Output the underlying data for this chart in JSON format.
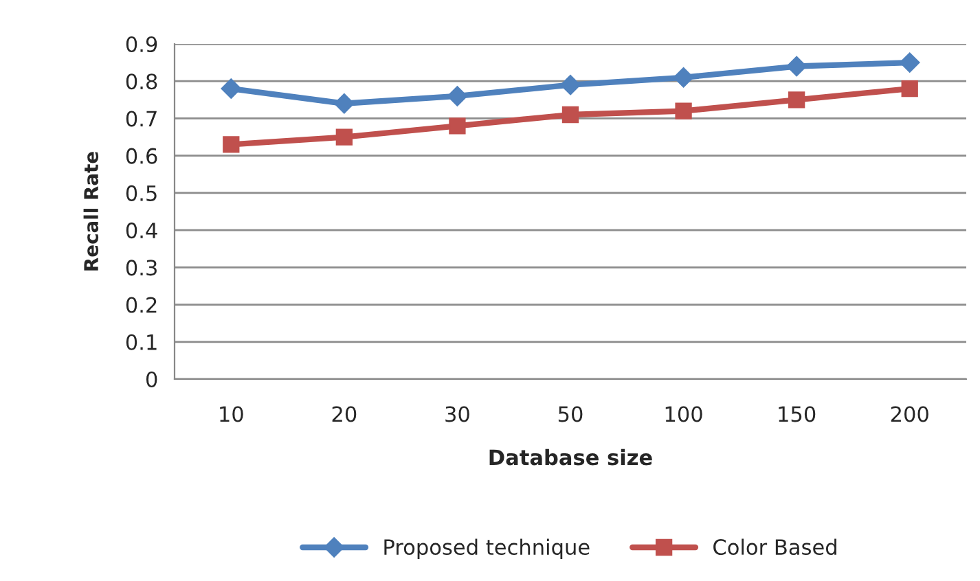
{
  "chart_data": {
    "type": "line",
    "xlabel": "Database size",
    "ylabel": "Recall Rate",
    "categories": [
      "10",
      "20",
      "30",
      "50",
      "100",
      "150",
      "200"
    ],
    "series": [
      {
        "name": "Proposed technique",
        "color": "#4f81bd",
        "marker": "diamond",
        "values": [
          0.78,
          0.74,
          0.76,
          0.79,
          0.81,
          0.84,
          0.85
        ]
      },
      {
        "name": "Color Based",
        "color": "#c0504d",
        "marker": "square",
        "values": [
          0.63,
          0.65,
          0.68,
          0.71,
          0.72,
          0.75,
          0.78
        ]
      }
    ],
    "ylim": [
      0,
      0.9
    ],
    "yticks": [
      0,
      0.1,
      0.2,
      0.3,
      0.4,
      0.5,
      0.6,
      0.7,
      0.8,
      0.9
    ],
    "grid": "y",
    "legend": "bottom",
    "line_style": "solid"
  }
}
